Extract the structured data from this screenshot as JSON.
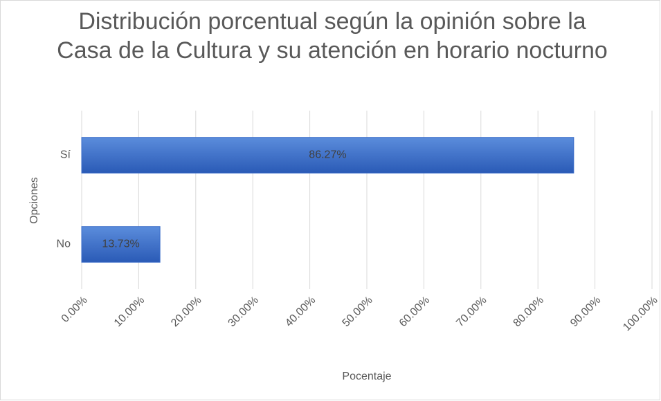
{
  "chart_data": {
    "type": "bar",
    "orientation": "horizontal",
    "title": "Distribución porcentual según la opinión sobre la Casa de la Cultura y su atención en horario nocturno",
    "categories": [
      "Sí",
      "No"
    ],
    "values": [
      86.27,
      13.73
    ],
    "value_labels": [
      "86.27%",
      "13.73%"
    ],
    "color": "#3a6cc8",
    "x_label": "Pocentaje",
    "y_label": "Opciones",
    "xlim": [
      0,
      100
    ],
    "xticks": [
      {
        "value": 0,
        "label": "0.00%"
      },
      {
        "value": 10,
        "label": "10.00%"
      },
      {
        "value": 20,
        "label": "20.00%"
      },
      {
        "value": 30,
        "label": "30.00%"
      },
      {
        "value": 40,
        "label": "40.00%"
      },
      {
        "value": 50,
        "label": "50.00%"
      },
      {
        "value": 60,
        "label": "60.00%"
      },
      {
        "value": 70,
        "label": "70.00%"
      },
      {
        "value": 80,
        "label": "80.00%"
      },
      {
        "value": 90,
        "label": "90.00%"
      },
      {
        "value": 100,
        "label": "100.00%"
      }
    ],
    "grid": true
  }
}
